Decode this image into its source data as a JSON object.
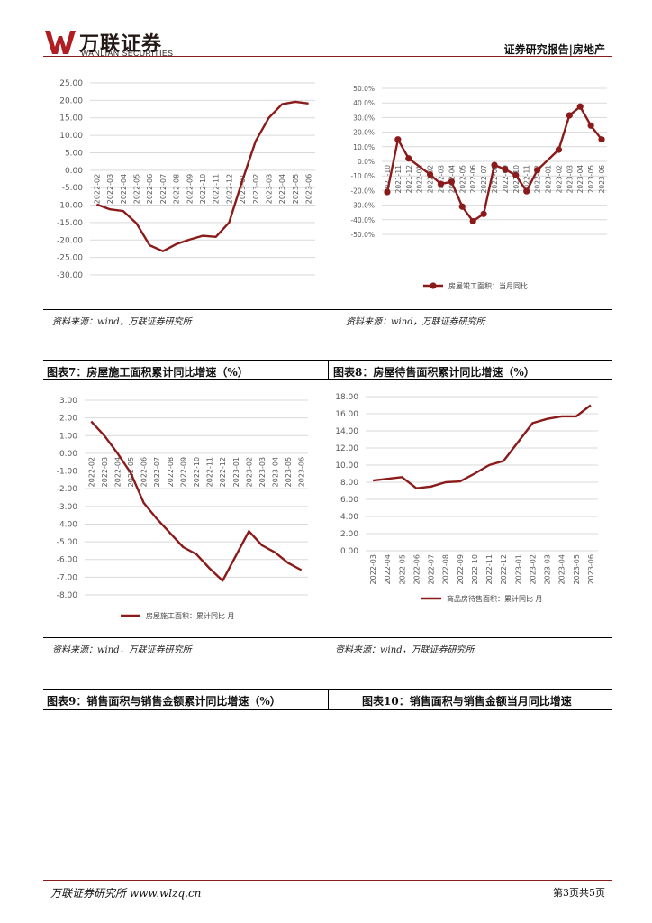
{
  "header": {
    "logo_cn": "万联证券",
    "logo_en": "WANLIAN SECURITIES",
    "report_type": "证券研究报告|房地产",
    "accent_color": "#8b1a1a"
  },
  "panels": {
    "top_left": {
      "source": "资料来源：wind，万联证券研究所"
    },
    "top_right": {
      "source": "资料来源：wind，万联证券研究所"
    },
    "mid_left": {
      "caption": "图表7：房屋施工面积累计同比增速（%）",
      "source": "资料来源：wind，万联证券研究所"
    },
    "mid_right": {
      "caption": "图表8：房屋待售面积累计同比增速（%）",
      "source": "资料来源：wind，万联证券研究所"
    },
    "bottom_left": {
      "caption": "图表9：销售面积与销售金额累计同比增速（%）"
    },
    "bottom_right": {
      "caption": "图表10：销售面积与销售金额当月同比增速"
    }
  },
  "footer": {
    "left": "万联证券研究所 www.wlzq.cn",
    "page": "第3页共5页"
  },
  "chart_data": [
    {
      "id": "chart1",
      "type": "line",
      "title": "",
      "x": [
        "2022-02",
        "2022-03",
        "2022-04",
        "2022-05",
        "2022-06",
        "2022-07",
        "2022-08",
        "2022-09",
        "2022-10",
        "2022-11",
        "2022-12",
        "2023-01",
        "2023-02",
        "2023-03",
        "2023-04",
        "2023-05",
        "2023-06"
      ],
      "series": [
        {
          "values": [
            -9.8,
            -11.2,
            -11.7,
            -15.2,
            -21.5,
            -23.2,
            -21.2,
            -19.9,
            -18.8,
            -19.1,
            -15.0,
            -3.0,
            8.3,
            15.0,
            18.9,
            19.6,
            19.1
          ],
          "color": "#8b1a1a"
        }
      ],
      "ylim": [
        -30,
        25
      ],
      "yticks": [
        "25.00",
        "20.00",
        "15.00",
        "10.00",
        "5.00",
        "0.00",
        "-5.00",
        "-10.00",
        "-15.00",
        "-20.00",
        "-25.00",
        "-30.00"
      ],
      "grid": true,
      "legend": []
    },
    {
      "id": "chart2",
      "type": "line",
      "title": "",
      "x": [
        "2021-10",
        "2021-11",
        "2021-12",
        "2022-01",
        "2022-02",
        "2022-03",
        "2022-04",
        "2022-05",
        "2022-06",
        "2022-07",
        "2022-08",
        "2022-09",
        "2022-10",
        "2022-11",
        "2022-12",
        "2023-01",
        "2023-02",
        "2023-03",
        "2023-04",
        "2023-05",
        "2023-06"
      ],
      "series": [
        {
          "name": "房屋竣工面积：当月同比",
          "values": [
            -21,
            15,
            2,
            null,
            -9,
            -15.5,
            -14,
            -31,
            -41,
            -36,
            -2.5,
            -5.5,
            -9.5,
            -20.5,
            -6,
            null,
            8,
            31.5,
            37.5,
            24.5,
            15
          ],
          "color": "#8b1a1a"
        }
      ],
      "ylim": [
        -50,
        50
      ],
      "yticks": [
        "50.0%",
        "40.0%",
        "30.0%",
        "20.0%",
        "10.0%",
        "0.0%",
        "-10.0%",
        "-20.0%",
        "-30.0%",
        "-40.0%",
        "-50.0%"
      ],
      "grid": true,
      "legend": [
        "房屋竣工面积：当月同比"
      ],
      "legend_position": "bottom"
    },
    {
      "id": "chart3",
      "type": "line",
      "title": "",
      "x": [
        "2022-02",
        "2022-03",
        "2022-04",
        "2022-05",
        "2022-06",
        "2022-07",
        "2022-08",
        "2022-09",
        "2022-10",
        "2022-11",
        "2022-12",
        "2023-01",
        "2023-02",
        "2023-03",
        "2023-04",
        "2023-05",
        "2023-06"
      ],
      "series": [
        {
          "name": "房屋施工面积：累计同比 月",
          "values": [
            1.8,
            1.0,
            0.0,
            -1.1,
            -2.8,
            -3.7,
            -4.5,
            -5.3,
            -5.7,
            -6.5,
            -7.2,
            -5.8,
            -4.4,
            -5.2,
            -5.6,
            -6.2,
            -6.6
          ],
          "color": "#8b1a1a"
        }
      ],
      "ylim": [
        -8,
        3
      ],
      "yticks": [
        "3.00",
        "2.00",
        "1.00",
        "0.00",
        "-1.00",
        "-2.00",
        "-3.00",
        "-4.00",
        "-5.00",
        "-6.00",
        "-7.00",
        "-8.00"
      ],
      "grid": true,
      "legend": [
        "房屋施工面积：累计同比 月"
      ],
      "legend_position": "bottom"
    },
    {
      "id": "chart4",
      "type": "line",
      "title": "",
      "x": [
        "2022-03",
        "2022-04",
        "2022-05",
        "2022-06",
        "2022-07",
        "2022-08",
        "2022-09",
        "2022-10",
        "2022-11",
        "2022-12",
        "2023-01",
        "2023-02",
        "2023-03",
        "2023-04",
        "2023-05",
        "2023-06"
      ],
      "series": [
        {
          "name": "商品房待售面积：累计同比 月",
          "values": [
            8.2,
            8.4,
            8.6,
            7.3,
            7.5,
            8.0,
            8.1,
            9.0,
            10.0,
            10.5,
            12.7,
            14.9,
            15.4,
            15.7,
            15.7,
            17.0
          ],
          "color": "#8b1a1a"
        }
      ],
      "ylim": [
        0,
        18
      ],
      "yticks": [
        "18.00",
        "16.00",
        "14.00",
        "12.00",
        "10.00",
        "8.00",
        "6.00",
        "4.00",
        "2.00",
        "0.00"
      ],
      "grid": true,
      "legend": [
        "商品房待售面积：累计同比 月"
      ],
      "legend_position": "bottom"
    }
  ]
}
